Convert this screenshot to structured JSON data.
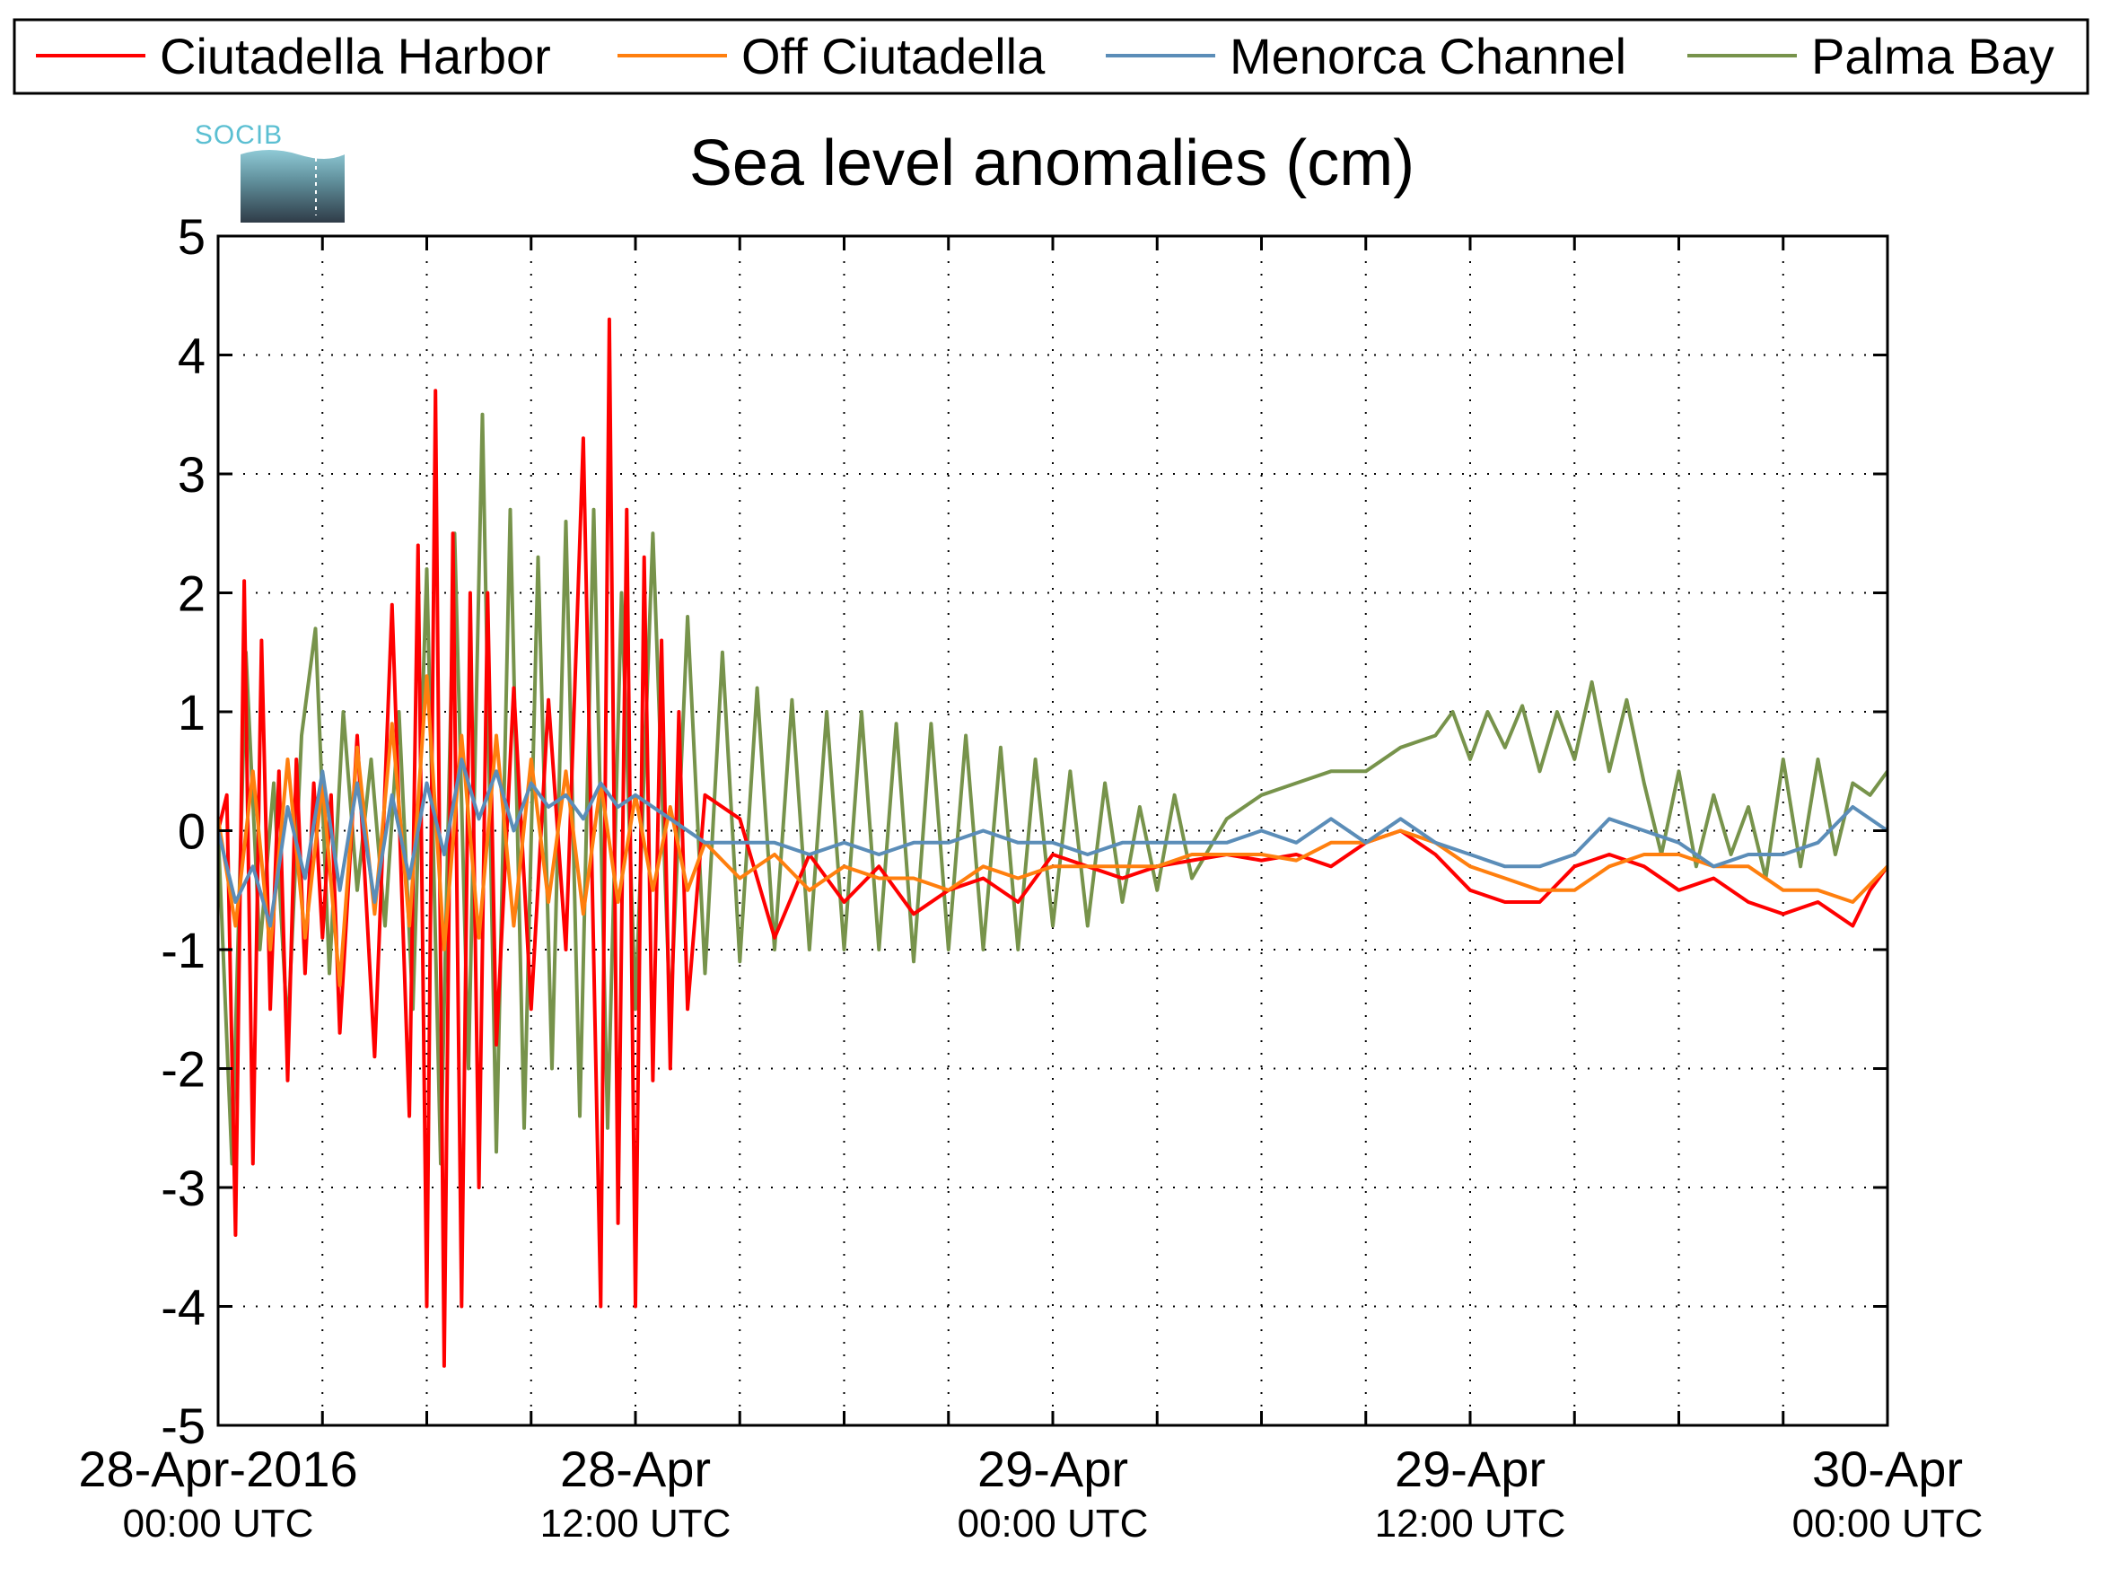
{
  "chart_data": {
    "type": "line",
    "title": "Sea level anomalies (cm)",
    "xlabel": "",
    "ylabel": "",
    "ylim": [
      -5,
      5
    ],
    "yticks": [
      -5,
      -4,
      -3,
      -2,
      -1,
      0,
      1,
      2,
      3,
      4,
      5
    ],
    "xlim_hours": [
      0,
      48
    ],
    "xticks": [
      {
        "label": "28-Apr-2016",
        "sub": "00:00 UTC",
        "hour": 0
      },
      {
        "label": "28-Apr",
        "sub": "12:00 UTC",
        "hour": 12
      },
      {
        "label": "29-Apr",
        "sub": "00:00 UTC",
        "hour": 24
      },
      {
        "label": "29-Apr",
        "sub": "12:00 UTC",
        "hour": 36
      },
      {
        "label": "30-Apr",
        "sub": "00:00 UTC",
        "hour": 48
      }
    ],
    "grid": true,
    "legend_position": "top",
    "logo_text": "SOCIB",
    "series": [
      {
        "name": "Ciutadella Harbor",
        "color": "#ff0000",
        "x": [
          0,
          0.25,
          0.5,
          0.75,
          1.0,
          1.25,
          1.5,
          1.75,
          2.0,
          2.25,
          2.5,
          2.75,
          3.0,
          3.25,
          3.5,
          4.0,
          4.5,
          5.0,
          5.5,
          5.75,
          6.0,
          6.25,
          6.5,
          6.75,
          7.0,
          7.25,
          7.5,
          7.75,
          8.0,
          8.5,
          9.0,
          9.5,
          10.0,
          10.5,
          11.0,
          11.25,
          11.5,
          11.75,
          12.0,
          12.25,
          12.5,
          12.75,
          13.0,
          13.25,
          13.5,
          14.0,
          15.0,
          16.0,
          17.0,
          18.0,
          19.0,
          20.0,
          21.0,
          22.0,
          23.0,
          24.0,
          25.0,
          26.0,
          27.0,
          28.0,
          29.0,
          30.0,
          31.0,
          32.0,
          33.0,
          34.0,
          35.0,
          36.0,
          37.0,
          38.0,
          39.0,
          40.0,
          41.0,
          42.0,
          43.0,
          44.0,
          45.0,
          46.0,
          47.0,
          47.5,
          48.0
        ],
        "values": [
          0.0,
          0.3,
          -3.4,
          2.1,
          -2.8,
          1.6,
          -1.5,
          0.5,
          -2.1,
          0.6,
          -1.2,
          0.4,
          -0.9,
          0.3,
          -1.7,
          0.8,
          -1.9,
          1.9,
          -2.4,
          2.4,
          -4.0,
          3.7,
          -4.5,
          2.5,
          -4.0,
          2.0,
          -3.0,
          2.0,
          -1.8,
          1.2,
          -1.5,
          1.1,
          -1.0,
          3.3,
          -4.0,
          4.3,
          -3.3,
          2.7,
          -4.0,
          2.3,
          -2.1,
          1.6,
          -2.0,
          1.0,
          -1.5,
          0.3,
          0.1,
          -0.9,
          -0.2,
          -0.6,
          -0.3,
          -0.7,
          -0.5,
          -0.4,
          -0.6,
          -0.2,
          -0.3,
          -0.4,
          -0.3,
          -0.25,
          -0.2,
          -0.25,
          -0.2,
          -0.3,
          -0.1,
          0.0,
          -0.2,
          -0.5,
          -0.6,
          -0.6,
          -0.3,
          -0.2,
          -0.3,
          -0.5,
          -0.4,
          -0.6,
          -0.7,
          -0.6,
          -0.8,
          -0.5,
          -0.3
        ]
      },
      {
        "name": "Off Ciutadella",
        "color": "#ff7f0e",
        "x": [
          0,
          0.5,
          1.0,
          1.5,
          2.0,
          2.5,
          3.0,
          3.5,
          4.0,
          4.5,
          5.0,
          5.5,
          6.0,
          6.5,
          7.0,
          7.5,
          8.0,
          8.5,
          9.0,
          9.5,
          10.0,
          10.5,
          11.0,
          11.5,
          12.0,
          12.5,
          13.0,
          13.5,
          14.0,
          15.0,
          16.0,
          17.0,
          18.0,
          19.0,
          20.0,
          21.0,
          22.0,
          23.0,
          24.0,
          25.0,
          26.0,
          27.0,
          28.0,
          29.0,
          30.0,
          31.0,
          32.0,
          33.0,
          34.0,
          35.0,
          36.0,
          37.0,
          38.0,
          39.0,
          40.0,
          41.0,
          42.0,
          43.0,
          44.0,
          45.0,
          46.0,
          47.0,
          48.0
        ],
        "values": [
          0.1,
          -0.8,
          0.5,
          -1.0,
          0.6,
          -0.9,
          0.4,
          -1.3,
          0.7,
          -0.7,
          0.9,
          -0.8,
          1.3,
          -1.0,
          0.8,
          -0.9,
          0.8,
          -0.8,
          0.6,
          -0.6,
          0.5,
          -0.7,
          0.4,
          -0.6,
          0.3,
          -0.5,
          0.2,
          -0.5,
          -0.1,
          -0.4,
          -0.2,
          -0.5,
          -0.3,
          -0.4,
          -0.4,
          -0.5,
          -0.3,
          -0.4,
          -0.3,
          -0.3,
          -0.3,
          -0.3,
          -0.2,
          -0.2,
          -0.2,
          -0.25,
          -0.1,
          -0.1,
          0.0,
          -0.1,
          -0.3,
          -0.4,
          -0.5,
          -0.5,
          -0.3,
          -0.2,
          -0.2,
          -0.3,
          -0.3,
          -0.5,
          -0.5,
          -0.6,
          -0.3
        ]
      },
      {
        "name": "Menorca Channel",
        "color": "#5b8db8",
        "x": [
          0,
          0.5,
          1.0,
          1.5,
          2.0,
          2.5,
          3.0,
          3.5,
          4.0,
          4.5,
          5.0,
          5.5,
          6.0,
          6.5,
          7.0,
          7.5,
          8.0,
          8.5,
          9.0,
          9.5,
          10.0,
          10.5,
          11.0,
          11.5,
          12.0,
          13.0,
          14.0,
          15.0,
          16.0,
          17.0,
          18.0,
          19.0,
          20.0,
          21.0,
          22.0,
          23.0,
          24.0,
          25.0,
          26.0,
          27.0,
          28.0,
          29.0,
          30.0,
          31.0,
          32.0,
          33.0,
          34.0,
          35.0,
          36.0,
          37.0,
          38.0,
          39.0,
          40.0,
          41.0,
          42.0,
          43.0,
          44.0,
          45.0,
          46.0,
          47.0,
          48.0
        ],
        "values": [
          0.0,
          -0.6,
          -0.3,
          -0.8,
          0.2,
          -0.4,
          0.5,
          -0.5,
          0.4,
          -0.6,
          0.3,
          -0.4,
          0.4,
          -0.2,
          0.6,
          0.1,
          0.5,
          0.0,
          0.4,
          0.2,
          0.3,
          0.1,
          0.4,
          0.2,
          0.3,
          0.1,
          -0.1,
          -0.1,
          -0.1,
          -0.2,
          -0.1,
          -0.2,
          -0.1,
          -0.1,
          0.0,
          -0.1,
          -0.1,
          -0.2,
          -0.1,
          -0.1,
          -0.1,
          -0.1,
          0.0,
          -0.1,
          0.1,
          -0.1,
          0.1,
          -0.1,
          -0.2,
          -0.3,
          -0.3,
          -0.2,
          0.1,
          0.0,
          -0.1,
          -0.3,
          -0.2,
          -0.2,
          -0.1,
          0.2,
          0.0
        ]
      },
      {
        "name": "Palma Bay",
        "color": "#77934b",
        "x": [
          0,
          0.4,
          0.8,
          1.2,
          1.6,
          2.0,
          2.4,
          2.8,
          3.2,
          3.6,
          4.0,
          4.4,
          4.8,
          5.2,
          5.6,
          6.0,
          6.4,
          6.8,
          7.2,
          7.6,
          8.0,
          8.4,
          8.8,
          9.2,
          9.6,
          10.0,
          10.4,
          10.8,
          11.2,
          11.6,
          12.0,
          12.5,
          13.0,
          13.5,
          14.0,
          14.5,
          15.0,
          15.5,
          16.0,
          16.5,
          17.0,
          17.5,
          18.0,
          18.5,
          19.0,
          19.5,
          20.0,
          20.5,
          21.0,
          21.5,
          22.0,
          22.5,
          23.0,
          23.5,
          24.0,
          24.5,
          25.0,
          25.5,
          26.0,
          26.5,
          27.0,
          27.5,
          28.0,
          29.0,
          30.0,
          31.0,
          32.0,
          33.0,
          34.0,
          35.0,
          35.5,
          36.0,
          36.5,
          37.0,
          37.5,
          38.0,
          38.5,
          39.0,
          39.5,
          40.0,
          40.5,
          41.0,
          41.5,
          42.0,
          42.5,
          43.0,
          43.5,
          44.0,
          44.5,
          45.0,
          45.5,
          46.0,
          46.5,
          47.0,
          47.5,
          48.0
        ],
        "values": [
          0.0,
          -2.8,
          1.5,
          -1.0,
          0.4,
          -1.7,
          0.8,
          1.7,
          -1.2,
          1.0,
          -0.5,
          0.6,
          -0.8,
          1.0,
          -1.5,
          2.2,
          -2.8,
          2.5,
          -2.0,
          3.5,
          -2.7,
          2.7,
          -2.5,
          2.3,
          -2.0,
          2.6,
          -2.4,
          2.7,
          -2.5,
          2.0,
          -1.5,
          2.5,
          -1.6,
          1.8,
          -1.2,
          1.5,
          -1.1,
          1.2,
          -1.0,
          1.1,
          -1.0,
          1.0,
          -1.0,
          1.0,
          -1.0,
          0.9,
          -1.1,
          0.9,
          -1.0,
          0.8,
          -1.0,
          0.7,
          -1.0,
          0.6,
          -0.8,
          0.5,
          -0.8,
          0.4,
          -0.6,
          0.2,
          -0.5,
          0.3,
          -0.4,
          0.1,
          0.3,
          0.4,
          0.5,
          0.5,
          0.7,
          0.8,
          1.0,
          0.6,
          1.0,
          0.7,
          1.05,
          0.5,
          1.0,
          0.6,
          1.25,
          0.5,
          1.1,
          0.4,
          -0.2,
          0.5,
          -0.3,
          0.3,
          -0.2,
          0.2,
          -0.4,
          0.6,
          -0.3,
          0.6,
          -0.2,
          0.4,
          0.3,
          0.5
        ]
      }
    ]
  }
}
